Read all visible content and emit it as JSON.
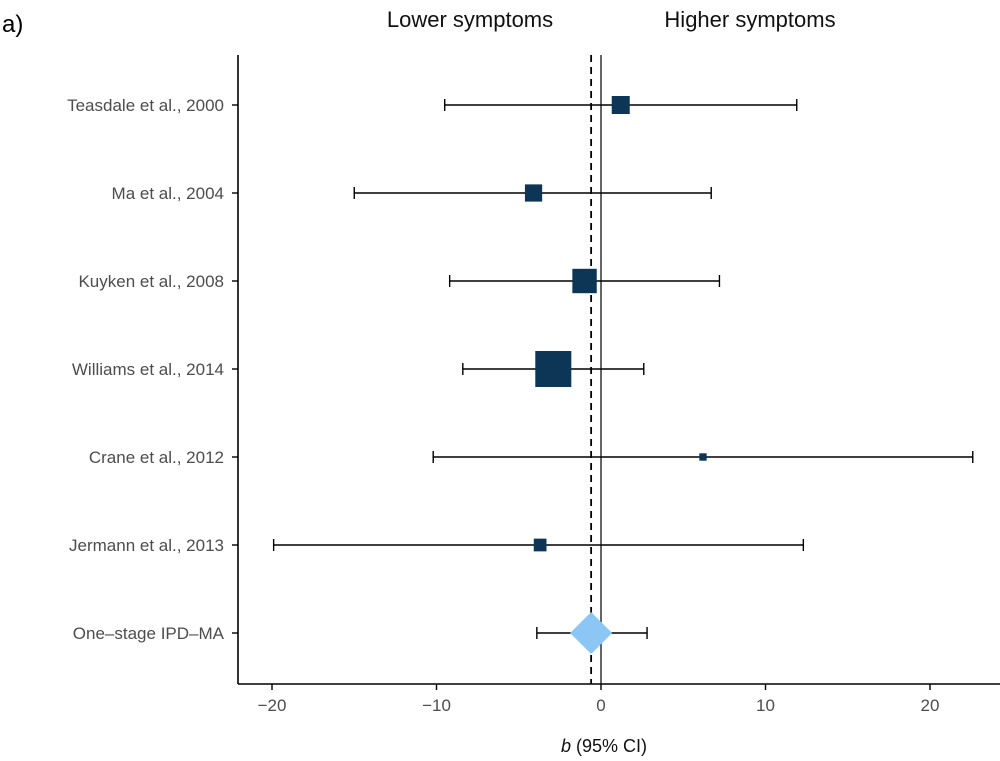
{
  "panel_label": "a)",
  "header": {
    "left": "Lower symptoms",
    "right": "Higher symptoms"
  },
  "axis": {
    "xlabel_var": "b",
    "xlabel_rest": " (95% CI)"
  },
  "colors": {
    "study_marker": "#0d3656",
    "pooled_marker": "#8cc6f5",
    "line": "#000000"
  },
  "chart_data": {
    "type": "forest",
    "title": "",
    "xlabel": "b (95% CI)",
    "xlim": [
      -22,
      24
    ],
    "xticks": [
      -20,
      -10,
      0,
      10,
      20
    ],
    "xtick_labels": [
      "−20",
      "−10",
      "0",
      "10",
      "20"
    ],
    "null_line": 0,
    "pooled_line": -0.6,
    "studies": [
      {
        "label": "Teasdale et al., 2000",
        "estimate": 1.2,
        "lower": -9.5,
        "upper": 11.9,
        "weight": 0.12
      },
      {
        "label": "Ma et al., 2004",
        "estimate": -4.1,
        "lower": -15.0,
        "upper": 6.7,
        "weight": 0.11
      },
      {
        "label": "Kuyken et al., 2008",
        "estimate": -1.0,
        "lower": -9.2,
        "upper": 7.2,
        "weight": 0.22
      },
      {
        "label": "Williams et al., 2014",
        "estimate": -2.9,
        "lower": -8.4,
        "upper": 2.6,
        "weight": 0.48
      },
      {
        "label": "Crane et al., 2012",
        "estimate": 6.2,
        "lower": -10.2,
        "upper": 22.6,
        "weight": 0.02
      },
      {
        "label": "Jermann et al., 2013",
        "estimate": -3.7,
        "lower": -19.9,
        "upper": 12.3,
        "weight": 0.06
      }
    ],
    "pooled": {
      "label": "One–stage IPD–MA",
      "estimate": -0.6,
      "lower": -3.9,
      "upper": 2.8
    }
  }
}
